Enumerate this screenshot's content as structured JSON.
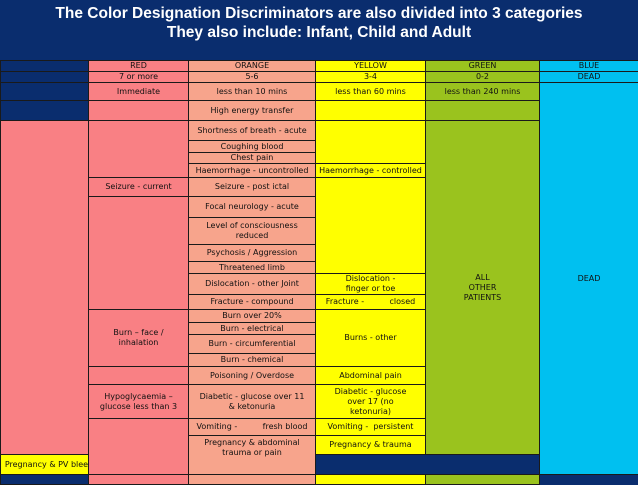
{
  "title": {
    "line1": "The Color Designation Discriminators  are also divided into  3 categories",
    "line2": "They also include: Infant, Child and Adult"
  },
  "header": {
    "red": "RED",
    "orange": "ORANGE",
    "yellow": "YELLOW",
    "green": "GREEN",
    "blue": "BLUE"
  },
  "score": {
    "red": "7 or more",
    "orange": "5-6",
    "yellow": "3-4",
    "green": "0-2",
    "blue": "DEAD"
  },
  "target_time": {
    "red": "Immediate",
    "orange": "less than 10 mins",
    "yellow": "less than 60 mins",
    "green": "less than 240 mins"
  },
  "cells": {
    "high_energy": "High energy transfer",
    "sob": "Shortness of breath - acute",
    "cough": "Coughing blood",
    "chest": "Chest pain",
    "haem_unc": "Haemorrhage - uncontrolled",
    "haem_con": "Haemorrhage - controlled",
    "seizure_current": "Seizure - current",
    "seizure_post": "Seizure - post ictal",
    "focal": "Focal neurology - acute",
    "loc": "Level of consciousness reduced",
    "psychosis": "Psychosis / Aggression",
    "limb": "Threatened limb",
    "disloc_other": "Dislocation -            other Joint",
    "disloc_finger": "Dislocation - finger or toe",
    "frac_compound": "Fracture - compound",
    "frac_closed": "Fracture -          closed",
    "burn_face": "Burn – face / inhalation",
    "burn20": "Burn over 20%",
    "burn_elec": "Burn - electrical",
    "burn_circ": "Burn - circumferential",
    "burn_chem": "Burn - chemical",
    "burns_other": "Burns - other",
    "poison": "Poisoning / Overdose",
    "abdo": "Abdominal pain",
    "hypo": "Hypoglycaemia – glucose less than 3",
    "diab11": "Diabetic -             glucose over 11      & ketonuria",
    "diab17": "Diabetic - glucose over 17 (no ketonuria)",
    "vom_blood": "Vomiting -          fresh blood",
    "vom_persist": "Vomiting -  persistent",
    "preg_abdo": "Pregnancy & abdominal trauma or pain",
    "preg_trauma": "Pregnancy & trauma",
    "preg_pv": "Pregnancy &             PV bleed",
    "all_other": "ALL OTHER PATIENTS",
    "dead": "DEAD"
  },
  "colors": {
    "background": "#0a2d6e",
    "red": "#f98084",
    "orange": "#f7a48c",
    "yellow": "#ffff00",
    "green": "#9ac31e",
    "blue": "#00c0f0"
  }
}
